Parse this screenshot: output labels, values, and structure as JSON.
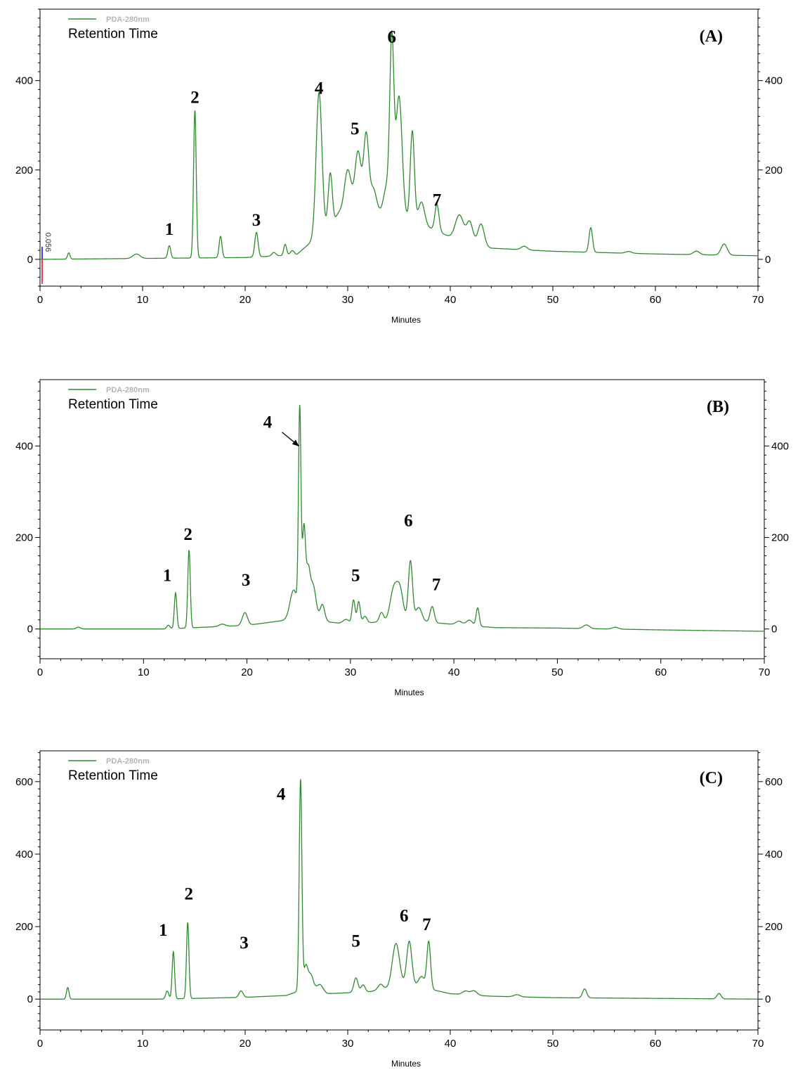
{
  "chart_data": [
    {
      "id": "A",
      "type": "line",
      "panel_label": "(A)",
      "legend": "PDA-280nm",
      "subtitle": "Retention Time",
      "xlabel": "Minutes",
      "xlim": [
        0,
        70
      ],
      "ylim": [
        -60,
        560
      ],
      "xticks": [
        0,
        10,
        20,
        30,
        40,
        50,
        60,
        70
      ],
      "yticks": [
        0,
        200,
        400
      ],
      "baseline_annotation": "0.056",
      "series": [
        {
          "color": "#2e8b2e",
          "baseline": [
            [
              0,
              0
            ],
            [
              10,
              2
            ],
            [
              20,
              4
            ],
            [
              25,
              10
            ],
            [
              28,
              70
            ],
            [
              32,
              110
            ],
            [
              36,
              90
            ],
            [
              40,
              50
            ],
            [
              44,
              25
            ],
            [
              50,
              18
            ],
            [
              60,
              12
            ],
            [
              70,
              8
            ]
          ],
          "peaks": [
            [
              2.8,
              14,
              0.12
            ],
            [
              9.4,
              10,
              0.35
            ],
            [
              12.6,
              28,
              0.14
            ],
            [
              15.1,
              330,
              0.13
            ],
            [
              17.6,
              48,
              0.14
            ],
            [
              21.1,
              55,
              0.16
            ],
            [
              22.8,
              8,
              0.2
            ],
            [
              23.9,
              25,
              0.14
            ],
            [
              24.6,
              10,
              0.2
            ],
            [
              27.2,
              320,
              0.28
            ],
            [
              28.3,
              120,
              0.2
            ],
            [
              29.1,
              20,
              0.3
            ],
            [
              30.0,
              110,
              0.35
            ],
            [
              31.0,
              140,
              0.3
            ],
            [
              31.8,
              170,
              0.25
            ],
            [
              32.5,
              50,
              0.3
            ],
            [
              33.8,
              60,
              0.3
            ],
            [
              34.3,
              380,
              0.2
            ],
            [
              35.0,
              270,
              0.3
            ],
            [
              36.3,
              200,
              0.2
            ],
            [
              37.2,
              50,
              0.3
            ],
            [
              38.7,
              60,
              0.2
            ],
            [
              40.9,
              55,
              0.4
            ],
            [
              41.9,
              45,
              0.3
            ],
            [
              43.0,
              48,
              0.3
            ],
            [
              47.2,
              8,
              0.3
            ],
            [
              53.7,
              55,
              0.17
            ],
            [
              57.4,
              4,
              0.3
            ],
            [
              64.0,
              8,
              0.3
            ],
            [
              66.7,
              25,
              0.3
            ]
          ]
        }
      ],
      "peak_labels": [
        {
          "text": "1",
          "x": 12.6,
          "y": 55
        },
        {
          "text": "2",
          "x": 15.1,
          "y": 350
        },
        {
          "text": "3",
          "x": 21.1,
          "y": 75
        },
        {
          "text": "4",
          "x": 27.2,
          "y": 370
        },
        {
          "text": "5",
          "x": 30.7,
          "y": 280
        },
        {
          "text": "6",
          "x": 34.3,
          "y": 485
        },
        {
          "text": "7",
          "x": 38.7,
          "y": 120
        }
      ]
    },
    {
      "id": "B",
      "type": "line",
      "panel_label": "(B)",
      "legend": "PDA-280nm",
      "subtitle": "Retention Time",
      "xlabel": "Minutes",
      "xlim": [
        0,
        70
      ],
      "ylim": [
        -65,
        545
      ],
      "xticks": [
        0,
        10,
        20,
        30,
        40,
        50,
        60,
        70
      ],
      "yticks": [
        0,
        200,
        400
      ],
      "series": [
        {
          "color": "#2e8b2e",
          "baseline": [
            [
              0,
              0
            ],
            [
              12,
              0
            ],
            [
              20,
              8
            ],
            [
              24,
              20
            ],
            [
              26,
              40
            ],
            [
              28,
              15
            ],
            [
              30,
              10
            ],
            [
              35,
              20
            ],
            [
              40,
              10
            ],
            [
              44,
              3
            ],
            [
              50,
              2
            ],
            [
              60,
              -2
            ],
            [
              70,
              -5
            ]
          ],
          "peaks": [
            [
              3.7,
              4,
              0.2
            ],
            [
              12.4,
              8,
              0.15
            ],
            [
              13.1,
              78,
              0.12
            ],
            [
              14.4,
              170,
              0.12
            ],
            [
              17.6,
              5,
              0.3
            ],
            [
              19.8,
              28,
              0.25
            ],
            [
              24.5,
              60,
              0.35
            ],
            [
              25.1,
              440,
              0.12
            ],
            [
              25.5,
              180,
              0.15
            ],
            [
              25.9,
              90,
              0.2
            ],
            [
              26.4,
              60,
              0.25
            ],
            [
              27.3,
              30,
              0.2
            ],
            [
              29.6,
              10,
              0.3
            ],
            [
              30.3,
              52,
              0.15
            ],
            [
              30.8,
              48,
              0.15
            ],
            [
              31.4,
              15,
              0.2
            ],
            [
              33.0,
              20,
              0.2
            ],
            [
              34.2,
              70,
              0.35
            ],
            [
              34.8,
              60,
              0.3
            ],
            [
              35.8,
              130,
              0.2
            ],
            [
              36.6,
              30,
              0.3
            ],
            [
              37.9,
              35,
              0.2
            ],
            [
              40.5,
              8,
              0.3
            ],
            [
              41.5,
              12,
              0.3
            ],
            [
              42.3,
              40,
              0.15
            ],
            [
              52.8,
              8,
              0.3
            ],
            [
              55.6,
              4,
              0.3
            ]
          ]
        }
      ],
      "peak_labels": [
        {
          "text": "1",
          "x": 12.3,
          "y": 105
        },
        {
          "text": "2",
          "x": 14.3,
          "y": 195
        },
        {
          "text": "3",
          "x": 19.9,
          "y": 95
        },
        {
          "text": "4",
          "x": 22.0,
          "y": 440
        },
        {
          "text": "5",
          "x": 30.5,
          "y": 105
        },
        {
          "text": "6",
          "x": 35.6,
          "y": 225
        },
        {
          "text": "7",
          "x": 38.3,
          "y": 85
        }
      ],
      "arrows": [
        {
          "from": [
            23.4,
            430
          ],
          "to": [
            25.0,
            400
          ]
        }
      ]
    },
    {
      "id": "C",
      "type": "line",
      "panel_label": "(C)",
      "legend": "PDA-280nm",
      "subtitle": "Retention Time",
      "xlabel": "Minutes",
      "xlim": [
        0,
        70
      ],
      "ylim": [
        -85,
        685
      ],
      "xticks": [
        0,
        10,
        20,
        30,
        40,
        50,
        60,
        70
      ],
      "yticks": [
        0,
        200,
        400,
        600
      ],
      "series": [
        {
          "color": "#2e8b2e",
          "baseline": [
            [
              0,
              0
            ],
            [
              12,
              0
            ],
            [
              20,
              5
            ],
            [
              24,
              10
            ],
            [
              26,
              30
            ],
            [
              28,
              15
            ],
            [
              32,
              20
            ],
            [
              36,
              40
            ],
            [
              40,
              15
            ],
            [
              44,
              8
            ],
            [
              50,
              4
            ],
            [
              60,
              2
            ],
            [
              70,
              0
            ]
          ],
          "peaks": [
            [
              2.7,
              32,
              0.12
            ],
            [
              12.4,
              22,
              0.15
            ],
            [
              13.0,
              130,
              0.12
            ],
            [
              14.4,
              210,
              0.12
            ],
            [
              19.6,
              18,
              0.2
            ],
            [
              25.4,
              580,
              0.13
            ],
            [
              25.9,
              60,
              0.2
            ],
            [
              26.4,
              40,
              0.25
            ],
            [
              27.3,
              20,
              0.3
            ],
            [
              30.8,
              40,
              0.2
            ],
            [
              31.5,
              20,
              0.2
            ],
            [
              33.2,
              15,
              0.25
            ],
            [
              34.7,
              120,
              0.35
            ],
            [
              36.0,
              120,
              0.25
            ],
            [
              37.2,
              30,
              0.3
            ],
            [
              37.9,
              130,
              0.18
            ],
            [
              41.5,
              10,
              0.3
            ],
            [
              42.3,
              12,
              0.3
            ],
            [
              46.5,
              6,
              0.3
            ],
            [
              53.1,
              25,
              0.2
            ],
            [
              66.2,
              15,
              0.2
            ]
          ]
        }
      ],
      "peak_labels": [
        {
          "text": "1",
          "x": 12.0,
          "y": 175
        },
        {
          "text": "2",
          "x": 14.5,
          "y": 275
        },
        {
          "text": "3",
          "x": 19.9,
          "y": 140
        },
        {
          "text": "4",
          "x": 23.5,
          "y": 550
        },
        {
          "text": "5",
          "x": 30.8,
          "y": 145
        },
        {
          "text": "6",
          "x": 35.5,
          "y": 215
        },
        {
          "text": "7",
          "x": 37.7,
          "y": 190
        }
      ]
    }
  ]
}
